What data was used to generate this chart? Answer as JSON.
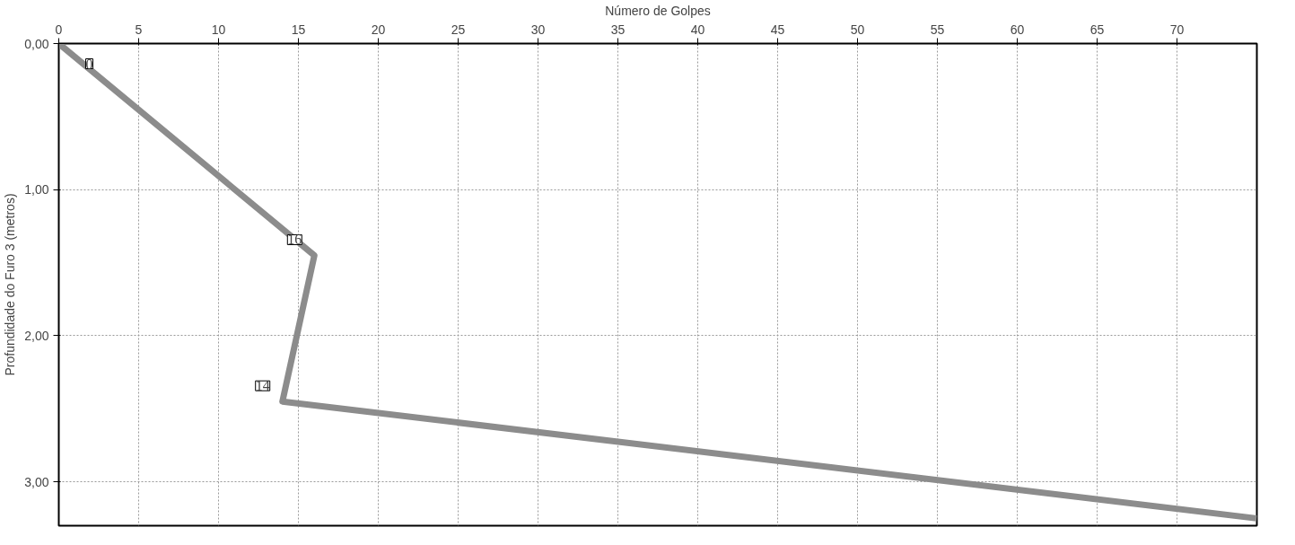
{
  "chart_data": {
    "type": "line",
    "xlabel": "Número de Golpes",
    "ylabel": "Profundidade do Furo 3 (metros)",
    "orientation": "horizontal",
    "x": [
      0,
      1.45,
      2.45,
      3.25
    ],
    "series": [
      {
        "color": "#8c8c8c",
        "values": [
          0,
          16,
          14,
          75
        ],
        "value_labels": [
          "0",
          "16",
          "14",
          null
        ]
      }
    ],
    "xlim": [
      0,
      75
    ],
    "xticks": [
      0,
      5,
      10,
      15,
      20,
      25,
      30,
      35,
      40,
      45,
      50,
      55,
      60,
      65,
      70
    ],
    "ylim": [
      3.3,
      0
    ],
    "yticks": [
      {
        "value": 0,
        "label": "0,00"
      },
      {
        "value": 1,
        "label": "1,00"
      },
      {
        "value": 2,
        "label": "2,00"
      },
      {
        "value": 3,
        "label": "3,00"
      }
    ],
    "grid": true,
    "marker": "none",
    "line_style": "solid"
  }
}
